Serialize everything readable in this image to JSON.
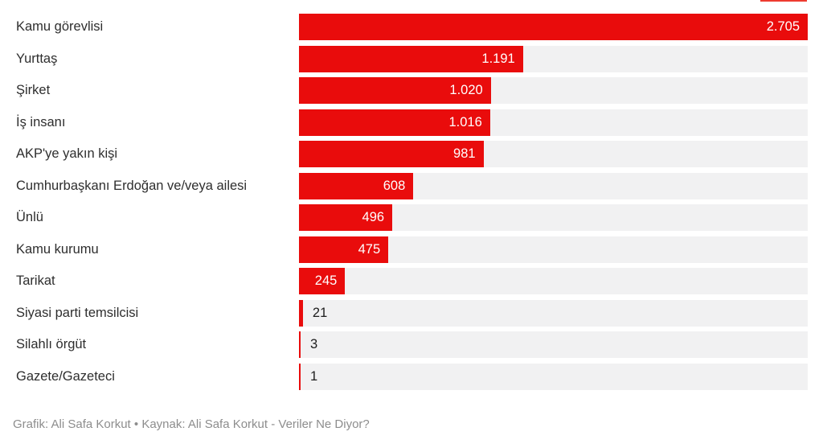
{
  "chart_data": {
    "type": "bar",
    "orientation": "horizontal",
    "title": "",
    "xlabel": "",
    "ylabel": "",
    "grid": false,
    "legend": false,
    "xlim": [
      0,
      2705
    ],
    "categories": [
      "Kamu görevlisi",
      "Yurttaş",
      "Şirket",
      "İş insanı",
      "AKP'ye yakın kişi",
      "Cumhurbaşkanı Erdoğan ve/veya ailesi",
      "Ünlü",
      "Kamu kurumu",
      "Tarikat",
      "Siyasi parti temsilcisi",
      "Silahlı örgüt",
      "Gazete/Gazeteci"
    ],
    "values": [
      2705,
      1191,
      1020,
      1016,
      981,
      608,
      496,
      475,
      245,
      21,
      3,
      1
    ],
    "value_labels": [
      "2.705",
      "1.191",
      "1.020",
      "1.016",
      "981",
      "608",
      "496",
      "475",
      "245",
      "21",
      "3",
      "1"
    ],
    "colors": {
      "bar": "#e90c0c",
      "track": "#f1f1f2",
      "category_label": "#2e2e2e",
      "value_label_inside": "#ffffff",
      "value_label_outside": "#1d1d1d"
    }
  },
  "footer": {
    "credit": "Grafik: Ali Safa Korkut • Kaynak: Ali Safa Korkut - Veriler Ne Diyor?",
    "color": "#8d8d8d"
  },
  "artifact": {
    "color": "#ee3b30"
  }
}
